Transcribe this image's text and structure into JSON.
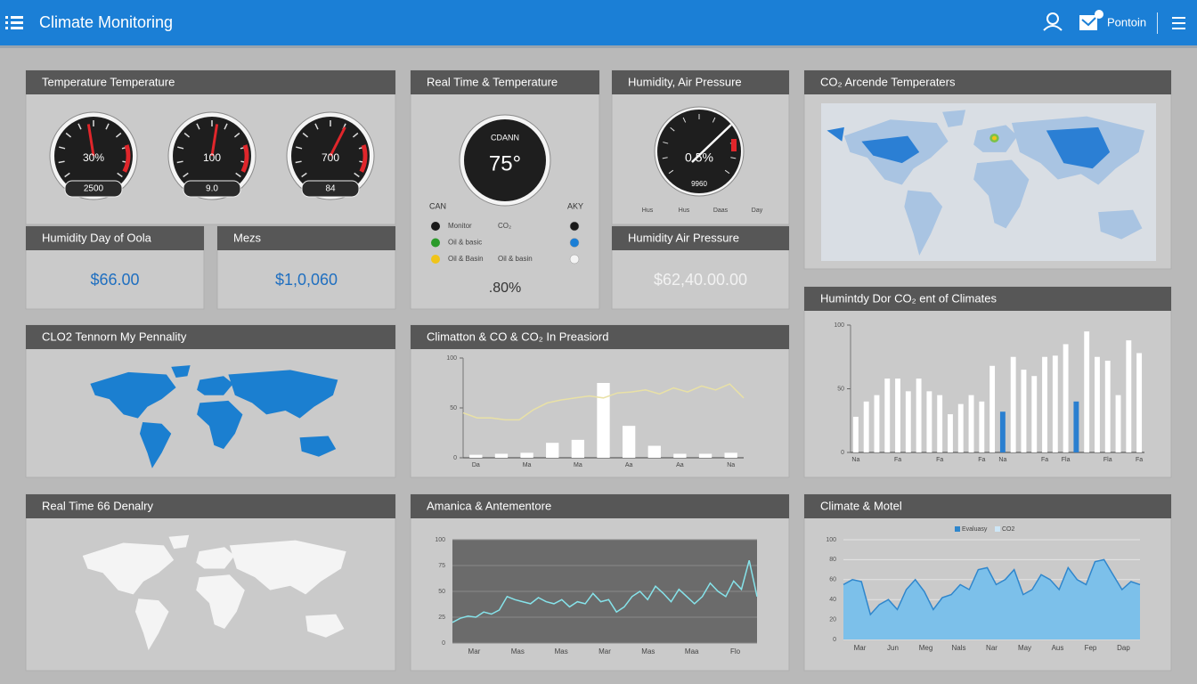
{
  "header": {
    "title": "Climate Monitoring",
    "user": "Pontoin"
  },
  "panels": [
    {
      "title": "Temperature Temperature",
      "gauges": [
        {
          "value": "30%",
          "label": "2500"
        },
        {
          "value": "100",
          "label": "9.0"
        },
        {
          "value": "700",
          "label": "84"
        }
      ]
    },
    {
      "title": "Humidity Day of Oola",
      "value": "$66.00"
    },
    {
      "title": "Mezs",
      "value": "$1,0,060"
    },
    {
      "title": "Real Time & Temperature",
      "gauges": [
        {
          "value": "75°",
          "label": "CDANN"
        }
      ],
      "legend_headers": [
        "CAN",
        "AKY"
      ],
      "legend": [
        {
          "label": "Monitor",
          "note": "CO₂"
        },
        {
          "label": "Oil & basic"
        },
        {
          "label": "Oil & Basin",
          "note": "Oil & basin"
        }
      ],
      "value": ".80%"
    },
    {
      "title": "Humidity, Air Pressure",
      "gauges": [
        {
          "value": "0.5%",
          "label": "9960"
        }
      ],
      "scale_labels": [
        "Hus",
        "Hus",
        "Daas",
        "Day"
      ]
    },
    {
      "title": "Humidity Air Pressure",
      "value": "$62,40.00.00"
    },
    {
      "title": "CO₂ Arcende Temperaters"
    },
    {
      "title": "CLO2 Tennorn My Pennality"
    },
    {
      "title": "Climatton & CO & CO₂ In Preasiord",
      "chart": {
        "type": "bar",
        "color": "#ffffff",
        "line_color": "#e9e1a6",
        "categories": [
          "Da",
          null,
          "Ma",
          null,
          "Ma",
          null,
          "Aa",
          null,
          "Aa",
          null,
          "Na"
        ],
        "values": [
          3,
          4,
          5,
          15,
          18,
          75,
          32,
          12,
          4,
          4,
          5
        ],
        "line_values": [
          45,
          40,
          40,
          38,
          38,
          48,
          55,
          58,
          60,
          62,
          60,
          65,
          66,
          68,
          64,
          70,
          66,
          72,
          68,
          74,
          60
        ],
        "ylim": [
          0,
          100
        ],
        "yticks": [
          0,
          50,
          100
        ]
      }
    },
    {
      "title": "Humintdy Dor CO₂ ent of Climates",
      "chart": {
        "type": "bar",
        "color": "#ffffff",
        "highlight_color": "#2a7fd0",
        "highlight": [
          14,
          21
        ],
        "categories": [
          "Na",
          null,
          null,
          null,
          "Fa",
          null,
          null,
          null,
          "Fa",
          null,
          null,
          null,
          "Fa",
          null,
          "Na",
          null,
          null,
          null,
          "Fa",
          null,
          "Fla",
          null,
          null,
          null,
          "Fla",
          null,
          null,
          "Fa"
        ],
        "values": [
          28,
          40,
          45,
          58,
          58,
          48,
          58,
          48,
          45,
          30,
          38,
          45,
          40,
          68,
          32,
          75,
          65,
          60,
          75,
          76,
          85,
          40,
          95,
          75,
          72,
          45,
          88,
          78
        ],
        "ylim": [
          0,
          100
        ],
        "yticks": [
          0,
          50,
          100
        ]
      }
    },
    {
      "title": "Real Time 66 Denalry"
    },
    {
      "title": "Amanica & Antementore",
      "chart": {
        "type": "line",
        "color": "#86e3ea",
        "background": "#6b6b6b",
        "categories": [
          "Mar",
          "Mas",
          "Mas",
          "Mar",
          "Mas",
          "Maa",
          "Flo"
        ],
        "values": [
          20,
          24,
          26,
          25,
          30,
          28,
          32,
          45,
          42,
          40,
          38,
          44,
          40,
          38,
          42,
          35,
          40,
          38,
          48,
          40,
          42,
          30,
          35,
          45,
          50,
          42,
          55,
          48,
          40,
          52,
          45,
          38,
          45,
          58,
          50,
          45,
          60,
          52,
          80,
          45
        ],
        "ylim": [
          0,
          100
        ],
        "yticks": [
          0,
          25,
          50,
          75,
          100
        ],
        "grid": true
      }
    },
    {
      "title": "Climate & Motel",
      "chart": {
        "type": "area",
        "color": "#7cc0ea",
        "stroke_color": "#2f86cc",
        "legend": [
          "Evaluasy",
          "CO2"
        ],
        "legend_colors": [
          "#2f86cc",
          "#cde6f6"
        ],
        "categories": [
          "Mar",
          "Jun",
          "Meg",
          "Nals",
          "Nar",
          "May",
          "Aus",
          "Fep",
          "Dap"
        ],
        "values": [
          55,
          60,
          58,
          25,
          35,
          40,
          30,
          50,
          60,
          48,
          30,
          42,
          45,
          55,
          50,
          70,
          72,
          55,
          60,
          70,
          45,
          50,
          65,
          60,
          50,
          72,
          60,
          55,
          78,
          80,
          65,
          50,
          58,
          55
        ],
        "ylim": [
          0,
          100
        ],
        "yticks": [
          0,
          20,
          40,
          60,
          80,
          100
        ],
        "grid": true
      }
    }
  ]
}
